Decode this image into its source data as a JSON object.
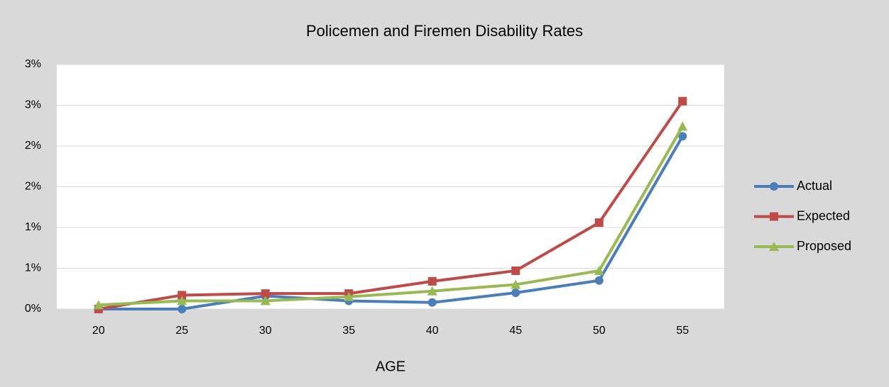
{
  "chart_data": {
    "type": "line",
    "title": "Policemen and Firemen Disability Rates",
    "x_label": "AGE",
    "categories": [
      "20",
      "25",
      "30",
      "35",
      "40",
      "45",
      "50",
      "55"
    ],
    "series": [
      {
        "name": "Actual",
        "color": "#4a7ebb",
        "marker": "circle",
        "values": [
          0,
          0,
          0.16,
          0.1,
          0.08,
          0.2,
          0.35,
          2.12
        ]
      },
      {
        "name": "Expected",
        "color": "#be4b48",
        "marker": "square",
        "values": [
          0,
          0.17,
          0.19,
          0.19,
          0.34,
          0.47,
          1.06,
          2.55
        ]
      },
      {
        "name": "Proposed",
        "color": "#98b954",
        "marker": "triangle",
        "values": [
          0.05,
          0.1,
          0.1,
          0.15,
          0.22,
          0.3,
          0.47,
          2.24
        ]
      }
    ],
    "ylim": [
      0,
      3
    ],
    "yticks": [
      {
        "value": 0,
        "label": "0%"
      },
      {
        "value": 0.5,
        "label": "1%"
      },
      {
        "value": 1,
        "label": "1%"
      },
      {
        "value": 1.5,
        "label": "2%"
      },
      {
        "value": 2,
        "label": "2%"
      },
      {
        "value": 2.5,
        "label": "3%"
      },
      {
        "value": 3,
        "label": "3%"
      }
    ],
    "grid": true,
    "legend": "right"
  }
}
